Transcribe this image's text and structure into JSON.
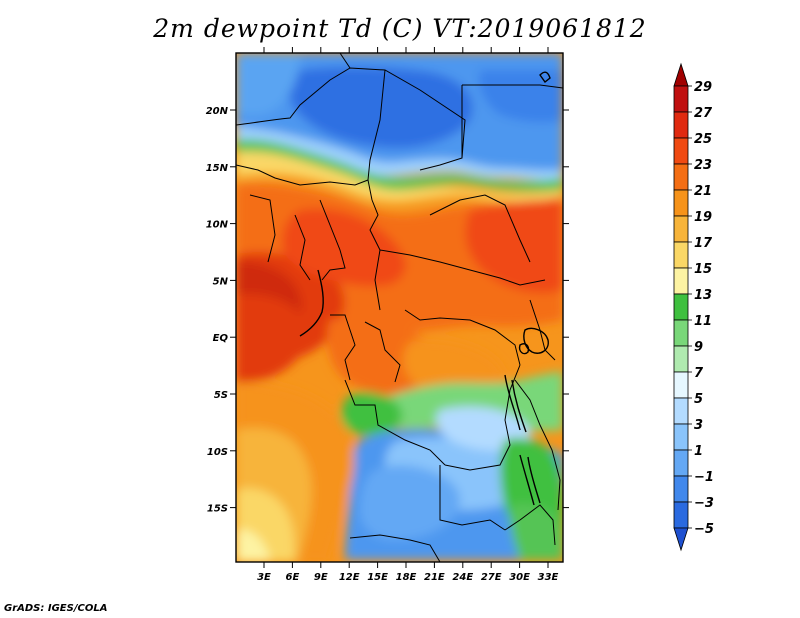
{
  "title": "2m dewpoint Td (C) VT:2019061812",
  "credit": "GrADS: IGES/COLA",
  "map": {
    "lat_labels": [
      "20N",
      "15N",
      "10N",
      "5N",
      "EQ",
      "5S",
      "10S",
      "15S"
    ],
    "lon_labels": [
      "3E",
      "6E",
      "9E",
      "12E",
      "15E",
      "18E",
      "21E",
      "24E",
      "27E",
      "30E",
      "33E"
    ]
  },
  "colorbar": {
    "labels": [
      "29",
      "27",
      "25",
      "23",
      "21",
      "19",
      "17",
      "15",
      "13",
      "11",
      "9",
      "7",
      "5",
      "3",
      "1",
      "−1",
      "−3",
      "−5"
    ],
    "colors": [
      "#a00000",
      "#c01010",
      "#e02a10",
      "#f04a12",
      "#f46e14",
      "#f6931a",
      "#f7b43a",
      "#fad766",
      "#fdf3a3",
      "#3fc03f",
      "#79d779",
      "#afeaaf",
      "#e6f7ff",
      "#b3dbff",
      "#8ac4fb",
      "#64a8f4",
      "#4188ec",
      "#2a6ae0",
      "#1e50d0"
    ]
  }
}
